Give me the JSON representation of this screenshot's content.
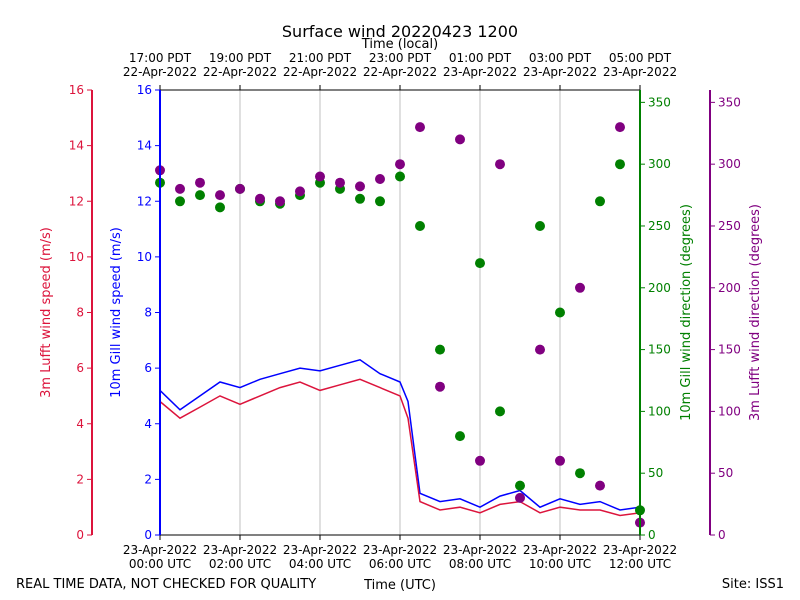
{
  "chart_data": {
    "type": "line",
    "title": "Surface wind 20220423 1200",
    "top_axis_label": "Time (local)",
    "xlabel": "Time (UTC)",
    "footer_left": "REAL TIME DATA, NOT CHECKED FOR QUALITY",
    "footer_right": "Site: ISS1",
    "x_range_hours": [
      0,
      12
    ],
    "bottom_ticks": [
      {
        "hour": 0,
        "lines": [
          "23-Apr-2022",
          "00:00 UTC"
        ]
      },
      {
        "hour": 2,
        "lines": [
          "23-Apr-2022",
          "02:00 UTC"
        ]
      },
      {
        "hour": 4,
        "lines": [
          "23-Apr-2022",
          "04:00 UTC"
        ]
      },
      {
        "hour": 6,
        "lines": [
          "23-Apr-2022",
          "06:00 UTC"
        ]
      },
      {
        "hour": 8,
        "lines": [
          "23-Apr-2022",
          "08:00 UTC"
        ]
      },
      {
        "hour": 10,
        "lines": [
          "23-Apr-2022",
          "10:00 UTC"
        ]
      },
      {
        "hour": 12,
        "lines": [
          "23-Apr-2022",
          "12:00 UTC"
        ]
      }
    ],
    "top_ticks": [
      {
        "hour": 0,
        "lines": [
          "17:00 PDT",
          "22-Apr-2022"
        ]
      },
      {
        "hour": 2,
        "lines": [
          "19:00 PDT",
          "22-Apr-2022"
        ]
      },
      {
        "hour": 4,
        "lines": [
          "21:00 PDT",
          "22-Apr-2022"
        ]
      },
      {
        "hour": 6,
        "lines": [
          "23:00 PDT",
          "22-Apr-2022"
        ]
      },
      {
        "hour": 8,
        "lines": [
          "01:00 PDT",
          "23-Apr-2022"
        ]
      },
      {
        "hour": 10,
        "lines": [
          "03:00 PDT",
          "23-Apr-2022"
        ]
      },
      {
        "hour": 12,
        "lines": [
          "05:00 PDT",
          "23-Apr-2022"
        ]
      }
    ],
    "axes": [
      {
        "key": "lufft_speed",
        "label": "3m Lufft wind speed (m/s)",
        "color": "#dc143c",
        "ylim": [
          0,
          16
        ],
        "ticks": [
          0,
          2,
          4,
          6,
          8,
          10,
          12,
          14,
          16
        ]
      },
      {
        "key": "gill_speed",
        "label": "10m Gill wind speed (m/s)",
        "color": "#0000ff",
        "ylim": [
          0,
          16
        ],
        "ticks": [
          0,
          2,
          4,
          6,
          8,
          10,
          12,
          14,
          16
        ]
      },
      {
        "key": "gill_dir",
        "label": "10m Gill wind direction (degrees)",
        "color": "#008000",
        "ylim": [
          0,
          360
        ],
        "ticks": [
          0,
          50,
          100,
          150,
          200,
          250,
          300,
          350
        ]
      },
      {
        "key": "lufft_dir",
        "label": "3m Lufft wind direction (degrees)",
        "color": "#800080",
        "ylim": [
          0,
          360
        ],
        "ticks": [
          0,
          50,
          100,
          150,
          200,
          250,
          300,
          350
        ]
      }
    ],
    "series": [
      {
        "name": "10m Gill wind speed",
        "kind": "line",
        "axis": "gill_speed",
        "color": "#0000ff",
        "x": [
          0,
          0.5,
          1,
          1.5,
          2,
          2.5,
          3,
          3.5,
          4,
          4.5,
          5,
          5.5,
          6,
          6.2,
          6.5,
          7,
          7.5,
          8,
          8.5,
          9,
          9.5,
          10,
          10.5,
          11,
          11.5,
          12
        ],
        "y": [
          5.2,
          4.5,
          5.0,
          5.5,
          5.3,
          5.6,
          5.8,
          6.0,
          5.9,
          6.1,
          6.3,
          5.8,
          5.5,
          4.8,
          1.5,
          1.2,
          1.3,
          1.0,
          1.4,
          1.6,
          1.0,
          1.3,
          1.1,
          1.2,
          0.9,
          1.0
        ]
      },
      {
        "name": "3m Lufft wind speed",
        "kind": "line",
        "axis": "lufft_speed",
        "color": "#dc143c",
        "x": [
          0,
          0.5,
          1,
          1.5,
          2,
          2.5,
          3,
          3.5,
          4,
          4.5,
          5,
          5.5,
          6,
          6.2,
          6.5,
          7,
          7.5,
          8,
          8.5,
          9,
          9.5,
          10,
          10.5,
          11,
          11.5,
          12
        ],
        "y": [
          4.8,
          4.2,
          4.6,
          5.0,
          4.7,
          5.0,
          5.3,
          5.5,
          5.2,
          5.4,
          5.6,
          5.3,
          5.0,
          4.2,
          1.2,
          0.9,
          1.0,
          0.8,
          1.1,
          1.2,
          0.8,
          1.0,
          0.9,
          0.9,
          0.7,
          0.8
        ]
      },
      {
        "name": "10m Gill wind direction",
        "kind": "scatter",
        "axis": "gill_dir",
        "color": "#008000",
        "x": [
          0,
          0.5,
          1,
          1.5,
          2,
          2.5,
          3,
          3.5,
          4,
          4.5,
          5,
          5.5,
          6,
          6.5,
          7,
          7.5,
          8,
          8.5,
          9,
          9.5,
          10,
          10.5,
          11,
          11.5,
          12
        ],
        "y": [
          285,
          270,
          275,
          265,
          280,
          270,
          268,
          275,
          285,
          280,
          272,
          270,
          290,
          250,
          150,
          80,
          220,
          100,
          40,
          250,
          180,
          50,
          270,
          300,
          20
        ]
      },
      {
        "name": "3m Lufft wind direction",
        "kind": "scatter",
        "axis": "lufft_dir",
        "color": "#800080",
        "x": [
          0,
          0.5,
          1,
          1.5,
          2,
          2.5,
          3,
          3.5,
          4,
          4.5,
          5,
          5.5,
          6,
          6.5,
          7,
          7.5,
          8,
          8.5,
          9,
          9.5,
          10,
          10.5,
          11,
          11.5,
          12
        ],
        "y": [
          295,
          280,
          285,
          275,
          280,
          272,
          270,
          278,
          290,
          285,
          282,
          288,
          300,
          330,
          120,
          320,
          60,
          300,
          30,
          150,
          60,
          200,
          40,
          330,
          10
        ]
      }
    ]
  }
}
